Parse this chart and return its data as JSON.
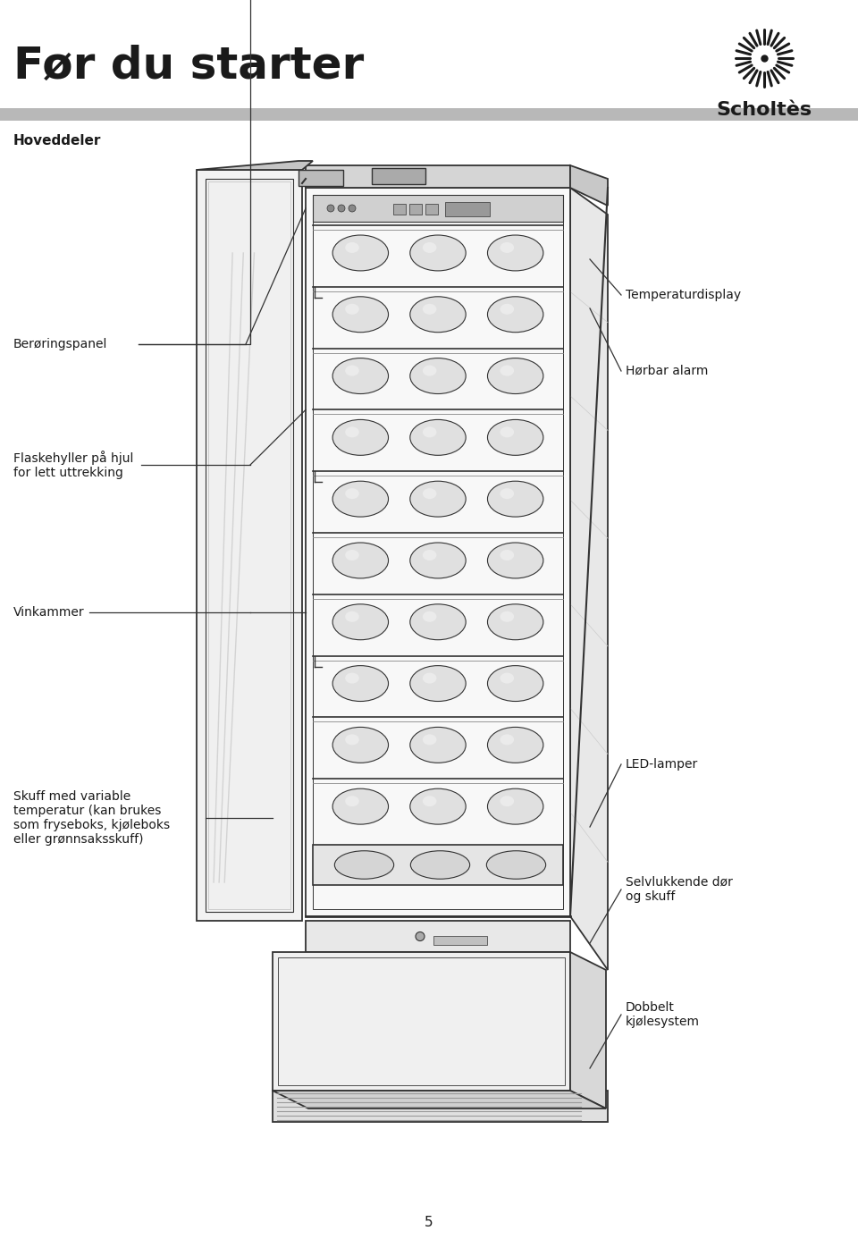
{
  "title": "Før du starter",
  "section_label": "Hoveddeler",
  "bg_color": "#ffffff",
  "text_color": "#1a1a1a",
  "line_color": "#333333",
  "header_bar_color": "#b8b8b8",
  "page_number": "5",
  "logo_text": "Scholtès"
}
